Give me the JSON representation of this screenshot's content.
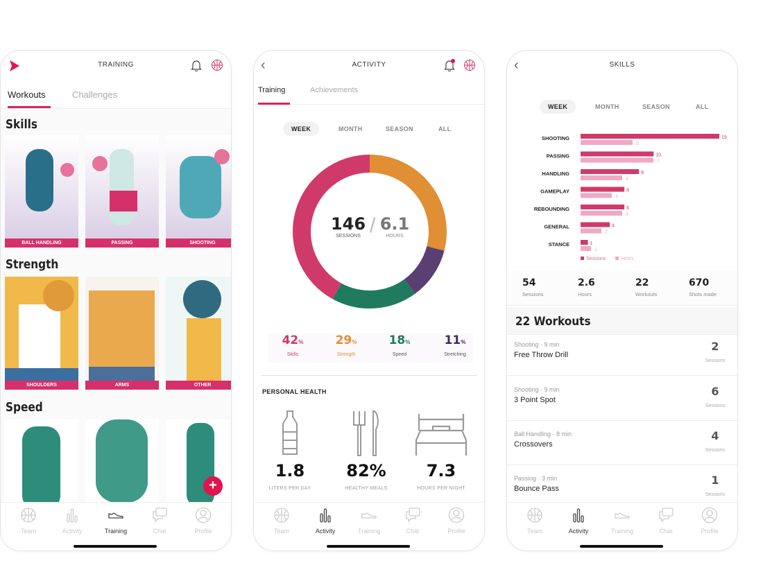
{
  "colors": {
    "accent": "#d6245c",
    "skills": "#d03a6b",
    "strength": "#e08f34",
    "speed": "#1f7a5e",
    "stretching": "#5a3f72",
    "hours": "#f0a8c4"
  },
  "nav": [
    {
      "label": "Team",
      "icon": "basketball-icon"
    },
    {
      "label": "Activity",
      "icon": "bar-chart-icon"
    },
    {
      "label": "Training",
      "icon": "sneaker-icon"
    },
    {
      "label": "Chat",
      "icon": "chat-icon"
    },
    {
      "label": "Profile",
      "icon": "profile-icon"
    }
  ],
  "training": {
    "title": "TRAINING",
    "tabs": [
      "Workouts",
      "Challenges"
    ],
    "sections": [
      {
        "title": "Skills",
        "cards": [
          "BALL HANDLING",
          "PASSING",
          "SHOOTING"
        ]
      },
      {
        "title": "Strength",
        "cards": [
          "SHOULDERS",
          "ARMS",
          "OTHER"
        ]
      },
      {
        "title": "Speed",
        "cards": [
          "",
          "",
          ""
        ]
      }
    ],
    "add_label": "+"
  },
  "activity": {
    "title": "ACTIVITY",
    "tabs": [
      "Training",
      "Achievements"
    ],
    "periods": [
      "WEEK",
      "MONTH",
      "SEASON",
      "ALL"
    ],
    "sessions": "146",
    "sessions_label": "SESSIONS",
    "hours": "6.1",
    "hours_label": "HOURS",
    "breakdown": [
      {
        "value": "42",
        "unit": "%",
        "label": "Skills",
        "pct": 42
      },
      {
        "value": "29",
        "unit": "%",
        "label": "Strength",
        "pct": 29
      },
      {
        "value": "18",
        "unit": "%",
        "label": "Speed",
        "pct": 18
      },
      {
        "value": "11",
        "unit": "%",
        "label": "Stretching",
        "pct": 11
      }
    ],
    "health_title": "PERSONAL HEALTH",
    "health": [
      {
        "value": "1.8",
        "label": "LITERS PER DAY",
        "icon": "water-bottle-icon"
      },
      {
        "value": "82%",
        "label": "HEALTHY MEALS",
        "icon": "fork-knife-icon"
      },
      {
        "value": "7.3",
        "label": "HOURS PER NIGHT",
        "icon": "bed-icon"
      }
    ]
  },
  "skills": {
    "title": "SKILLS",
    "periods": [
      "WEEK",
      "MONTH",
      "SEASON",
      "ALL"
    ],
    "chart_data": {
      "type": "bar",
      "orientation": "horizontal",
      "categories": [
        "SHOOTING",
        "PASSING",
        "HANDLING",
        "GAMEPLAY",
        "REBOUNDING",
        "GENERAL",
        "STANCE"
      ],
      "series": [
        {
          "name": "Sessions",
          "values": [
            19,
            10,
            8,
            6,
            6,
            4,
            1
          ],
          "labels": [
            "19",
            "10",
            "8",
            "6",
            "6",
            "4",
            "1"
          ]
        },
        {
          "name": "Hours",
          "values": [
            0.5,
            0.7,
            0.4,
            0.3,
            0.4,
            0.2,
            0.1
          ],
          "labels": [
            ".5",
            ".7",
            ".4",
            ".3",
            ".4",
            ".2",
            ".1"
          ]
        }
      ],
      "legend": "bottom"
    },
    "stats": [
      {
        "value": "54",
        "label": "Sessions"
      },
      {
        "value": "2.6",
        "label": "Hours"
      },
      {
        "value": "22",
        "label": "Workouts"
      },
      {
        "value": "670",
        "label": "Shots made"
      }
    ],
    "workouts_title": "22 Workouts",
    "workouts": [
      {
        "meta": "Shooting · 9 min",
        "name": "Free Throw Drill",
        "count": "2",
        "unit": "Sessions"
      },
      {
        "meta": "Shooting · 9 min",
        "name": "3 Point Spot",
        "count": "6",
        "unit": "Sessions"
      },
      {
        "meta": "Ball Handling · 8 min",
        "name": "Crossovers",
        "count": "4",
        "unit": "Sessions"
      },
      {
        "meta": "Passing · 3 min",
        "name": "Bounce Pass",
        "count": "1",
        "unit": "Sessions"
      }
    ]
  }
}
